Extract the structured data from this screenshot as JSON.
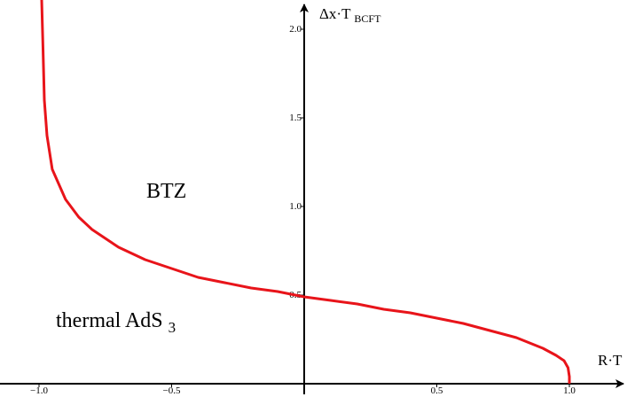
{
  "chart_data": {
    "type": "line",
    "xlabel": "R·T",
    "ylabel": "Δx·T",
    "ylabel_sub": "BCFT",
    "xlim": [
      -1.15,
      1.17
    ],
    "ylim": [
      -0.02,
      2.18
    ],
    "x_ticks": [
      {
        "value": -1.0,
        "label": "−1.0"
      },
      {
        "value": -0.5,
        "label": "−0.5"
      },
      {
        "value": 0.5,
        "label": "0.5"
      },
      {
        "value": 1.0,
        "label": "1.0"
      }
    ],
    "y_ticks": [
      {
        "value": 0.5,
        "label": "0.5"
      },
      {
        "value": 1.0,
        "label": "1.0"
      },
      {
        "value": 1.5,
        "label": "1.5"
      },
      {
        "value": 2.0,
        "label": "2.0"
      }
    ],
    "annotations": [
      {
        "text": "BTZ",
        "x": -0.5,
        "y": 1.08
      },
      {
        "text": "thermal AdS",
        "sub": "3",
        "x": -0.65,
        "y": 0.36
      }
    ],
    "series": [
      {
        "color": "#e8141a",
        "points": [
          [
            -0.99,
            2.2
          ],
          [
            -0.985,
            1.89
          ],
          [
            -0.98,
            1.6
          ],
          [
            -0.97,
            1.4
          ],
          [
            -0.95,
            1.21
          ],
          [
            -0.9,
            1.04
          ],
          [
            -0.85,
            0.94
          ],
          [
            -0.8,
            0.87
          ],
          [
            -0.7,
            0.77
          ],
          [
            -0.6,
            0.7
          ],
          [
            -0.5,
            0.65
          ],
          [
            -0.4,
            0.6
          ],
          [
            -0.3,
            0.57
          ],
          [
            -0.2,
            0.54
          ],
          [
            -0.1,
            0.52
          ],
          [
            0.0,
            0.49
          ],
          [
            0.1,
            0.47
          ],
          [
            0.2,
            0.45
          ],
          [
            0.3,
            0.42
          ],
          [
            0.4,
            0.4
          ],
          [
            0.5,
            0.37
          ],
          [
            0.6,
            0.34
          ],
          [
            0.7,
            0.3
          ],
          [
            0.8,
            0.26
          ],
          [
            0.9,
            0.2
          ],
          [
            0.95,
            0.16
          ],
          [
            0.98,
            0.13
          ],
          [
            0.995,
            0.09
          ],
          [
            1.0,
            0.04
          ],
          [
            1.0,
            0.0
          ]
        ]
      }
    ],
    "grid": false,
    "legend": "none"
  }
}
